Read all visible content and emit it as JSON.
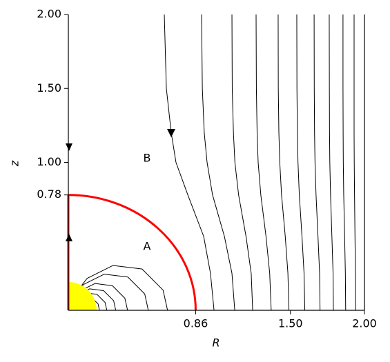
{
  "chart_data": {
    "type": "field_lines",
    "xlabel": "R",
    "ylabel": "z",
    "annotations": [
      "A",
      "B"
    ],
    "xlim": [
      0,
      2
    ],
    "ylim": [
      0,
      2
    ],
    "xticks": [
      0.86,
      {
        "value": 1.5,
        "label": "1.50"
      },
      {
        "value": 2,
        "label": "2.00"
      }
    ],
    "yticks": [
      0.78,
      {
        "value": 1,
        "label": "1.00"
      },
      {
        "value": 1.5,
        "label": "1.50"
      },
      {
        "value": 2,
        "label": "2.00"
      }
    ],
    "color": "#000000",
    "boundary_color": "#ff0000",
    "lines": [
      {
        "x": [
          0.648,
          0.662,
          0.695,
          0.727,
          0.807,
          0.914,
          0.96,
          0.984
        ],
        "y": [
          2,
          1.5,
          1.2,
          1,
          0.78,
          0.5,
          0.25,
          0
        ]
      },
      {
        "x": [
          0.9,
          0.905,
          0.918,
          0.937,
          0.974,
          1.054,
          1.105,
          1.124
        ],
        "y": [
          2,
          1.5,
          1.2,
          1,
          0.78,
          0.5,
          0.25,
          0
        ]
      },
      {
        "x": [
          1.105,
          1.107,
          1.115,
          1.125,
          1.15,
          1.2,
          1.235,
          1.245
        ],
        "y": [
          2,
          1.5,
          1.2,
          1,
          0.78,
          0.5,
          0.25,
          0
        ]
      },
      {
        "x": [
          1.268,
          1.27,
          1.275,
          1.282,
          1.3,
          1.335,
          1.36,
          1.37
        ],
        "y": [
          2,
          1.5,
          1.2,
          1,
          0.78,
          0.5,
          0.25,
          0
        ]
      },
      {
        "x": [
          1.417,
          1.418,
          1.422,
          1.428,
          1.44,
          1.465,
          1.483,
          1.49
        ],
        "y": [
          2,
          1.5,
          1.2,
          1,
          0.78,
          0.5,
          0.25,
          0
        ]
      },
      {
        "x": [
          1.543,
          1.544,
          1.547,
          1.551,
          1.56,
          1.578,
          1.592,
          1.597
        ],
        "y": [
          2,
          1.5,
          1.2,
          1,
          0.78,
          0.5,
          0.25,
          0
        ]
      },
      {
        "x": [
          1.66,
          1.661,
          1.663,
          1.666,
          1.673,
          1.686,
          1.697,
          1.7
        ],
        "y": [
          2,
          1.5,
          1.2,
          1,
          0.78,
          0.5,
          0.25,
          0
        ]
      },
      {
        "x": [
          1.762,
          1.763,
          1.764,
          1.766,
          1.771,
          1.78,
          1.788,
          1.79
        ],
        "y": [
          2,
          1.5,
          1.2,
          1,
          0.78,
          0.5,
          0.25,
          0
        ]
      },
      {
        "x": [
          1.855,
          1.855,
          1.856,
          1.857,
          1.86,
          1.866,
          1.871,
          1.873
        ],
        "y": [
          2,
          1.5,
          1.2,
          1,
          0.78,
          0.5,
          0.25,
          0
        ]
      },
      {
        "x": [
          1.93,
          1.93,
          1.93,
          1.931,
          1.933,
          1.936,
          1.939,
          1.94
        ],
        "y": [
          2,
          1.5,
          1.2,
          1,
          0.78,
          0.5,
          0.25,
          0
        ]
      },
      {
        "x": [
          0,
          0.027,
          0.127,
          0.301,
          0.498,
          0.64,
          0.67
        ],
        "y": [
          0,
          0.088,
          0.216,
          0.303,
          0.279,
          0.136,
          0
        ]
      },
      {
        "x": [
          0,
          0.022,
          0.102,
          0.242,
          0.402,
          0.516,
          0.54
        ],
        "y": [
          0,
          0.071,
          0.174,
          0.244,
          0.225,
          0.11,
          0
        ]
      },
      {
        "x": [
          0,
          0.016,
          0.076,
          0.18,
          0.298,
          0.382,
          0.4
        ],
        "y": [
          0,
          0.053,
          0.129,
          0.181,
          0.166,
          0.081,
          0
        ]
      },
      {
        "x": [
          0,
          0.013,
          0.06,
          0.144,
          0.238,
          0.306,
          0.32
        ],
        "y": [
          0,
          0.042,
          0.103,
          0.145,
          0.133,
          0.065,
          0
        ]
      },
      {
        "x": [
          0,
          0.01,
          0.049,
          0.117,
          0.193,
          0.248,
          0.26
        ],
        "y": [
          0,
          0.034,
          0.084,
          0.118,
          0.108,
          0.053,
          0
        ]
      },
      {
        "x": [
          0,
          0.008,
          0.04,
          0.094,
          0.156,
          0.201,
          0.21
        ],
        "y": [
          0,
          0.028,
          0.068,
          0.095,
          0.087,
          0.043,
          0
        ]
      }
    ]
  }
}
